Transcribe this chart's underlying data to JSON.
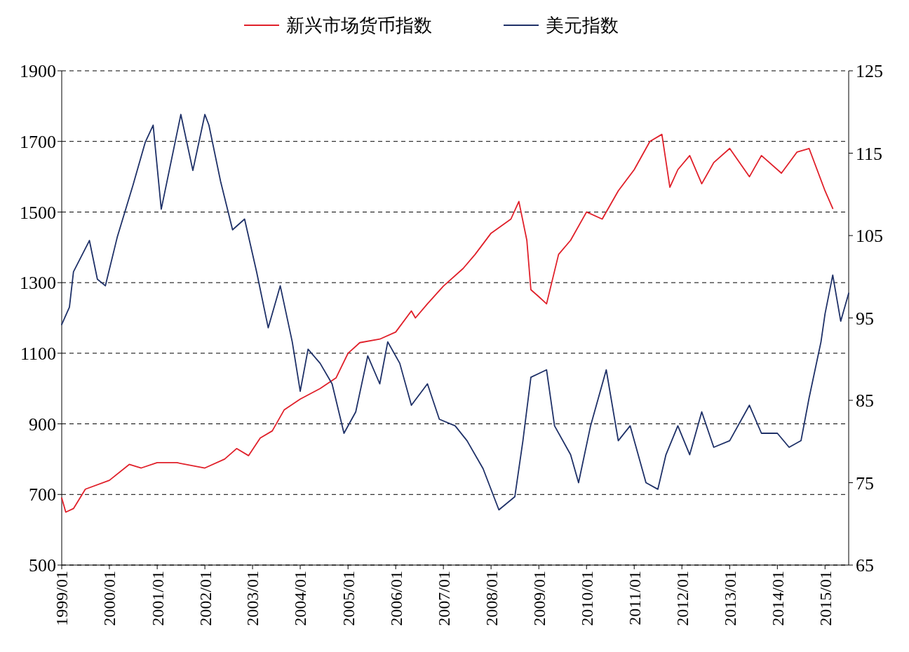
{
  "chart_data": {
    "type": "line",
    "legend": "top",
    "grid": "y",
    "line_style": "solid",
    "marker": "none",
    "xlim": [
      "1999-01",
      "2015-07"
    ],
    "xticks": [
      {
        "value": "1999-01",
        "label": "1999/01"
      },
      {
        "value": "2000-01",
        "label": "2000/01"
      },
      {
        "value": "2001-01",
        "label": "2001/01"
      },
      {
        "value": "2002-01",
        "label": "2002/01"
      },
      {
        "value": "2003-01",
        "label": "2003/01"
      },
      {
        "value": "2004-01",
        "label": "2004/01"
      },
      {
        "value": "2005-01",
        "label": "2005/01"
      },
      {
        "value": "2006-01",
        "label": "2006/01"
      },
      {
        "value": "2007-01",
        "label": "2007/01"
      },
      {
        "value": "2008-01",
        "label": "2008/01"
      },
      {
        "value": "2009-01",
        "label": "2009/01"
      },
      {
        "value": "2010-01",
        "label": "2010/01"
      },
      {
        "value": "2011-01",
        "label": "2011/01"
      },
      {
        "value": "2012-01",
        "label": "2012/01"
      },
      {
        "value": "2013-01",
        "label": "2013/01"
      },
      {
        "value": "2014-01",
        "label": "2014/01"
      },
      {
        "value": "2015-01",
        "label": "2015/01"
      }
    ],
    "ylim": [
      500,
      1900
    ],
    "yticks": [
      500,
      700,
      900,
      1100,
      1300,
      1500,
      1700,
      1900
    ],
    "y2lim": [
      65,
      125
    ],
    "y2ticks": [
      65,
      75,
      85,
      95,
      105,
      115,
      125
    ],
    "series": [
      {
        "name": "新兴市场货币指数",
        "color": "#e0202a",
        "x": [
          "1999-01",
          "1999-02",
          "1999-04",
          "1999-07",
          "2000-01",
          "2000-06",
          "2000-09",
          "2001-01",
          "2001-06",
          "2002-01",
          "2002-06",
          "2002-09",
          "2002-12",
          "2003-03",
          "2003-06",
          "2003-09",
          "2004-01",
          "2004-06",
          "2004-10",
          "2005-01",
          "2005-04",
          "2005-09",
          "2006-01",
          "2006-05",
          "2006-06",
          "2006-09",
          "2007-01",
          "2007-06",
          "2007-09",
          "2008-01",
          "2008-06",
          "2008-08",
          "2008-10",
          "2008-11",
          "2009-01",
          "2009-03",
          "2009-06",
          "2009-09",
          "2010-01",
          "2010-05",
          "2010-09",
          "2011-01",
          "2011-05",
          "2011-08",
          "2011-10",
          "2011-12",
          "2012-03",
          "2012-06",
          "2012-09",
          "2013-01",
          "2013-06",
          "2013-09",
          "2014-02",
          "2014-06",
          "2014-09",
          "2015-01",
          "2015-03"
        ],
        "values": [
          690,
          650,
          660,
          715,
          740,
          785,
          775,
          790,
          790,
          775,
          800,
          830,
          810,
          860,
          880,
          940,
          970,
          1000,
          1030,
          1100,
          1130,
          1140,
          1160,
          1220,
          1200,
          1240,
          1290,
          1340,
          1380,
          1440,
          1480,
          1530,
          1420,
          1280,
          1260,
          1240,
          1380,
          1420,
          1500,
          1480,
          1560,
          1620,
          1700,
          1720,
          1570,
          1620,
          1660,
          1580,
          1640,
          1680,
          1600,
          1660,
          1610,
          1670,
          1680,
          1560,
          1510
        ]
      },
      {
        "name": "美元指数",
        "color": "#1f3168",
        "axis": "y2",
        "x": [
          "1999-01",
          "1999-03",
          "1999-04",
          "1999-08",
          "1999-10",
          "1999-12",
          "2000-03",
          "2000-07",
          "2000-10",
          "2000-12",
          "2001-02",
          "2001-07",
          "2001-10",
          "2002-01",
          "2002-02",
          "2002-05",
          "2002-08",
          "2002-11",
          "2003-02",
          "2003-05",
          "2003-08",
          "2003-11",
          "2004-01",
          "2004-03",
          "2004-06",
          "2004-09",
          "2004-12",
          "2005-03",
          "2005-06",
          "2005-09",
          "2005-11",
          "2006-02",
          "2006-05",
          "2006-09",
          "2006-12",
          "2007-04",
          "2007-07",
          "2007-11",
          "2008-03",
          "2008-07",
          "2008-09",
          "2008-11",
          "2009-03",
          "2009-05",
          "2009-09",
          "2009-11",
          "2010-02",
          "2010-06",
          "2010-09",
          "2010-12",
          "2011-04",
          "2011-07",
          "2011-09",
          "2011-12",
          "2012-03",
          "2012-06",
          "2012-09",
          "2013-01",
          "2013-06",
          "2013-09",
          "2014-01",
          "2014-04",
          "2014-07",
          "2014-09",
          "2014-12",
          "2015-01",
          "2015-03",
          "2015-05",
          "2015-07"
        ],
        "values": [
          94.2,
          96.3,
          100.6,
          104.4,
          99.7,
          98.9,
          104.8,
          111.2,
          116.3,
          118.4,
          108.2,
          119.7,
          112.9,
          119.7,
          118.4,
          111.6,
          105.7,
          107,
          100.6,
          93.8,
          98.9,
          92.1,
          86.1,
          91.2,
          89.5,
          87,
          81,
          83.6,
          90.4,
          87,
          92.1,
          89.5,
          84.4,
          87,
          82.7,
          81.9,
          80.1,
          76.7,
          71.7,
          73.3,
          80.1,
          87.8,
          88.7,
          81.9,
          78.4,
          75,
          81.9,
          88.7,
          80.1,
          81.9,
          75,
          74.2,
          78.4,
          81.9,
          78.4,
          83.6,
          79.3,
          80.1,
          84.4,
          81,
          81,
          79.3,
          80.1,
          85.3,
          92.1,
          95.5,
          100.2,
          94.6,
          98
        ]
      }
    ]
  }
}
